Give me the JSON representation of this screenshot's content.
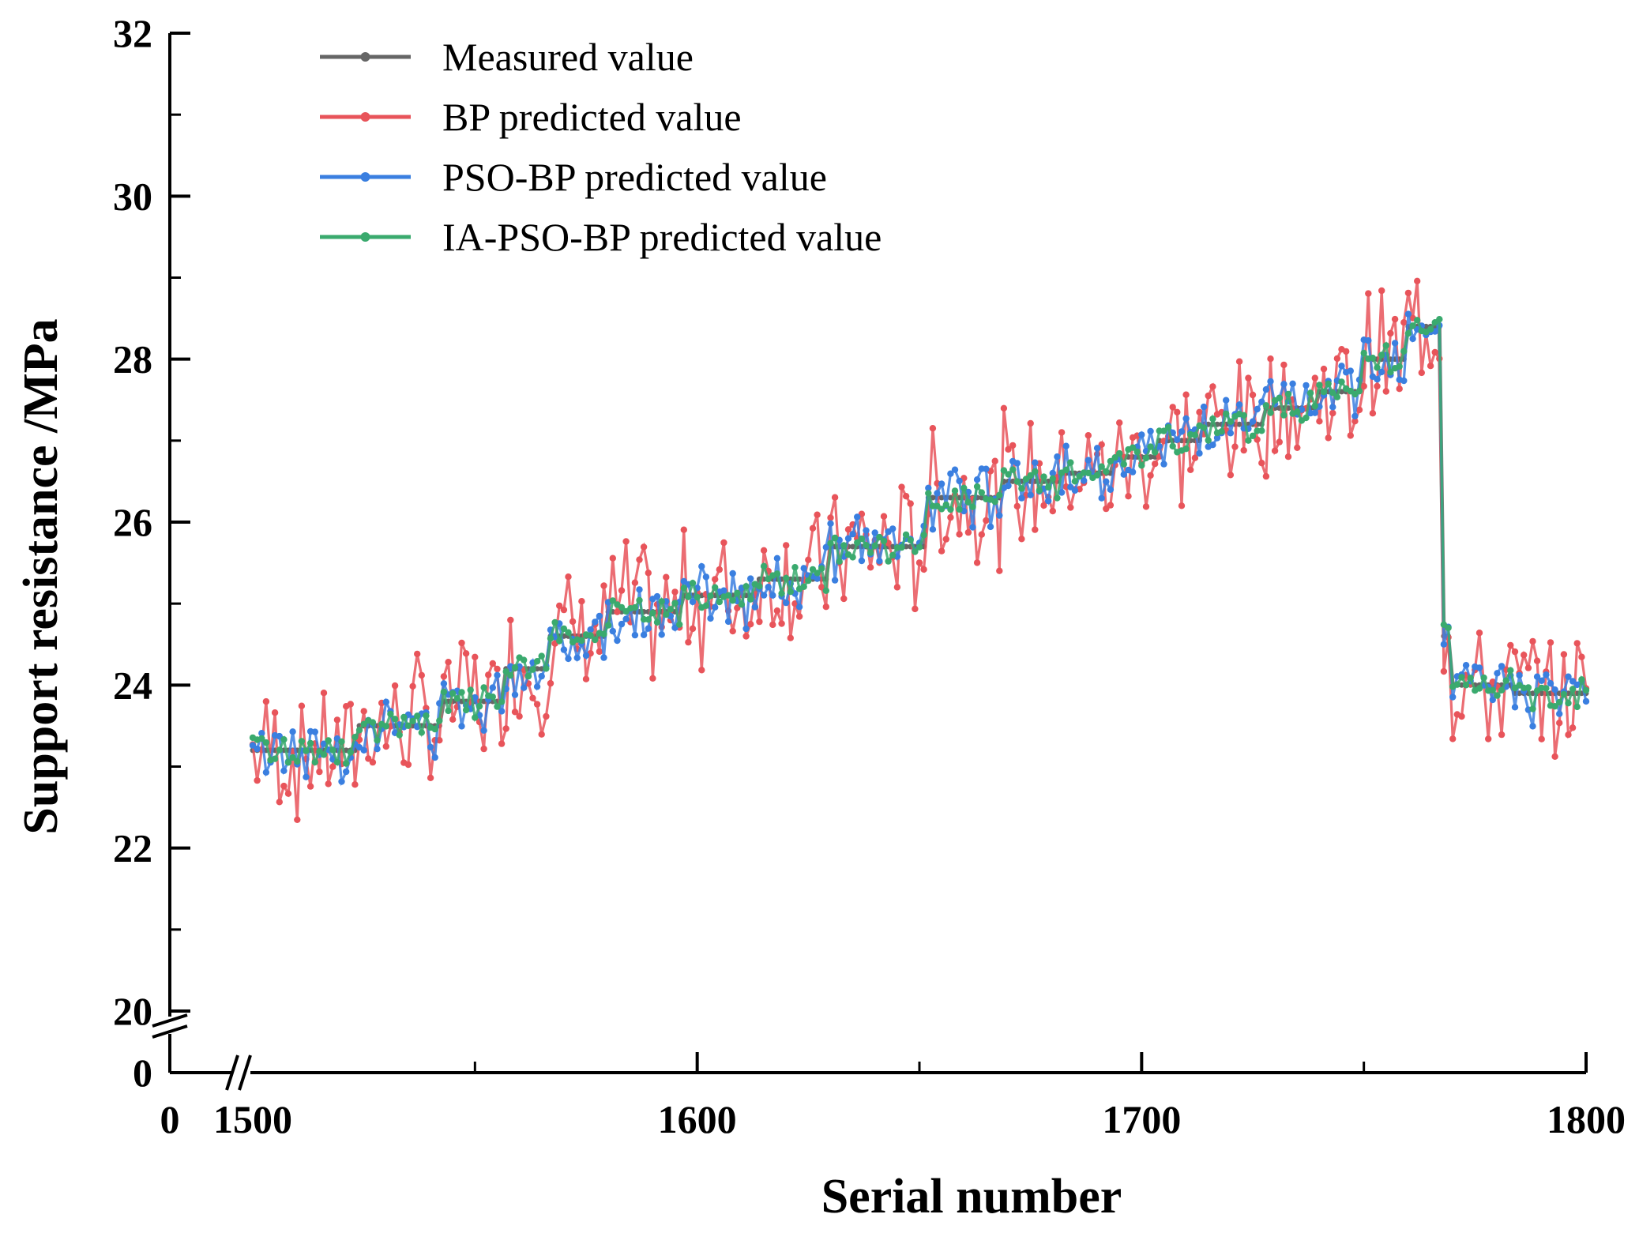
{
  "chart_data": {
    "type": "line",
    "title": "",
    "xlabel": "Serial number",
    "ylabel": "Support resistance /MPa",
    "xlim": [
      1500,
      1800
    ],
    "ylim": [
      20,
      32
    ],
    "axis_break": {
      "x_from": 0,
      "x_to": 1500,
      "y_from": 0,
      "y_to": 20
    },
    "x_ticks": [
      "0",
      "1500",
      "1600",
      "1700",
      "1800"
    ],
    "y_ticks": [
      "0",
      "20",
      "22",
      "24",
      "26",
      "28",
      "30",
      "32"
    ],
    "grid": false,
    "legend_position": "top-left",
    "measured_segments": [
      {
        "start": 1500,
        "end": 1524,
        "value": 23.2
      },
      {
        "start": 1524,
        "end": 1543,
        "value": 23.5
      },
      {
        "start": 1543,
        "end": 1557,
        "value": 23.8
      },
      {
        "start": 1557,
        "end": 1567,
        "value": 24.2
      },
      {
        "start": 1567,
        "end": 1580,
        "value": 24.6
      },
      {
        "start": 1580,
        "end": 1597,
        "value": 24.9
      },
      {
        "start": 1597,
        "end": 1614,
        "value": 25.1
      },
      {
        "start": 1614,
        "end": 1630,
        "value": 25.3
      },
      {
        "start": 1630,
        "end": 1652,
        "value": 25.7
      },
      {
        "start": 1652,
        "end": 1669,
        "value": 26.3
      },
      {
        "start": 1669,
        "end": 1682,
        "value": 26.5
      },
      {
        "start": 1682,
        "end": 1694,
        "value": 26.6
      },
      {
        "start": 1694,
        "end": 1704,
        "value": 26.8
      },
      {
        "start": 1704,
        "end": 1714,
        "value": 27.0
      },
      {
        "start": 1714,
        "end": 1728,
        "value": 27.2
      },
      {
        "start": 1728,
        "end": 1740,
        "value": 27.4
      },
      {
        "start": 1740,
        "end": 1750,
        "value": 27.6
      },
      {
        "start": 1750,
        "end": 1760,
        "value": 28.0
      },
      {
        "start": 1760,
        "end": 1768,
        "value": 28.4
      },
      {
        "start": 1768,
        "end": 1770,
        "value": 24.6
      },
      {
        "start": 1770,
        "end": 1784,
        "value": 24.0
      },
      {
        "start": 1784,
        "end": 1800,
        "value": 23.9
      }
    ],
    "series": [
      {
        "name": "Measured value",
        "color": "#666666",
        "noise": 0.0,
        "seed": 1
      },
      {
        "name": "BP predicted value",
        "color": "#e8545a",
        "noise": 0.75,
        "seed": 7
      },
      {
        "name": "PSO-BP predicted value",
        "color": "#3a7fe0",
        "noise": 0.32,
        "seed": 13
      },
      {
        "name": "IA-PSO-BP predicted value",
        "color": "#3aaa6e",
        "noise": 0.16,
        "seed": 29
      }
    ]
  }
}
